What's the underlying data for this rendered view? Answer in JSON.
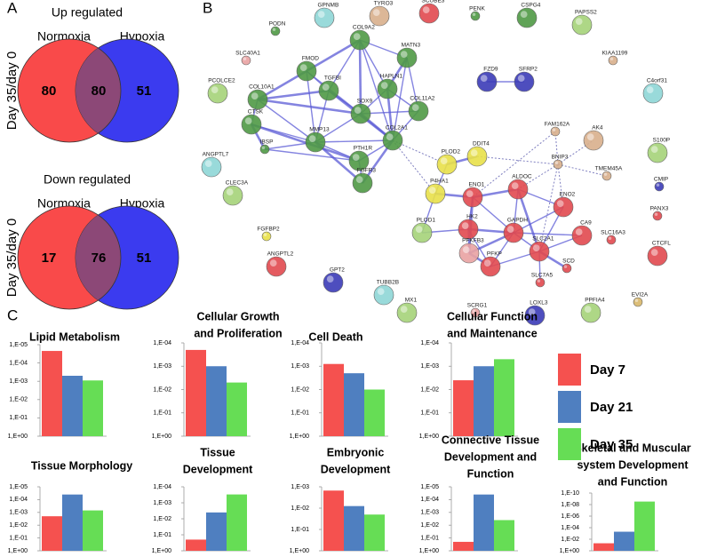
{
  "panel_labels": [
    "A",
    "B",
    "C"
  ],
  "venn": [
    {
      "title": "Up regulated",
      "ylabel": "Day 35/day 0",
      "sets": [
        "Normoxia",
        "Hypoxia"
      ],
      "values": [
        80,
        80,
        51
      ]
    },
    {
      "title": "Down regulated",
      "ylabel": "Day 35/day 0",
      "sets": [
        "Normoxia",
        "Hypoxia"
      ],
      "values": [
        17,
        76,
        51
      ]
    }
  ],
  "network": {
    "nodes": [
      "PODN",
      "GPNMB",
      "TYRO3",
      "SCUBE3",
      "PENK",
      "CSPG4",
      "PAPSS2",
      "KIAA1199",
      "SLC40A1",
      "FMOD",
      "COL9A2",
      "MATN3",
      "FZD9",
      "SFRP2",
      "C4orf31",
      "PCOLCE2",
      "COL10A1",
      "TGFBI",
      "HAPLN1",
      "SOX9",
      "COL11A2",
      "CTSK",
      "MMP13",
      "COL2A1",
      "IBSP",
      "FAM162A",
      "AK4",
      "S100P",
      "BNIP3",
      "TMEM45A",
      "ANGPTL7",
      "PTH1R",
      "FGFR3",
      "PLOD2",
      "DDIT4",
      "P4HA1",
      "ENO1",
      "ALDOC",
      "ENO2",
      "CMIP",
      "CLEC3A",
      "HK2",
      "GAPDH",
      "CA9",
      "SLC16A3",
      "PANX3",
      "PLOD1",
      "FGFBP2",
      "PFKFB3",
      "SLC2A1",
      "PFKP",
      "SCD",
      "SLC7A5",
      "CTCFL",
      "ANGPTL2",
      "GPT2",
      "TUBB2B",
      "MX1",
      "SCRG1",
      "LOXL3",
      "PPFIA4",
      "EVI2A"
    ]
  },
  "legend": [
    {
      "name": "Day 7",
      "color": "#f5514f"
    },
    {
      "name": "Day 21",
      "color": "#4f7fc0"
    },
    {
      "name": "Day 35",
      "color": "#66dd55"
    }
  ],
  "chart_data": [
    {
      "type": "bar",
      "title": [
        "Lipid Metabolism"
      ],
      "log_scale": true,
      "ylim": [
        1,
        1e-05
      ],
      "yticks": [
        {
          "value": 1e-05,
          "label": "1,E-05"
        },
        {
          "value": 0.0001,
          "label": "1,E-04"
        },
        {
          "value": 0.001,
          "label": "1,E-03"
        },
        {
          "value": 0.01,
          "label": "1,E-02"
        },
        {
          "value": 0.1,
          "label": "1,E-01"
        },
        {
          "value": 1,
          "label": "1,E+00"
        }
      ],
      "values": [
        2.2e-05,
        0.0005,
        0.0009
      ]
    },
    {
      "type": "bar",
      "title": [
        "Cellular Growth",
        "and Proliferation"
      ],
      "log_scale": true,
      "ylim": [
        1,
        0.0001
      ],
      "yticks": [
        {
          "value": 0.0001,
          "label": "1,E-04"
        },
        {
          "value": 0.001,
          "label": "1,E-03"
        },
        {
          "value": 0.01,
          "label": "1,E-02"
        },
        {
          "value": 0.1,
          "label": "1,E-01"
        },
        {
          "value": 1,
          "label": "1,E+00"
        }
      ],
      "values": [
        0.0002,
        0.001,
        0.005
      ]
    },
    {
      "type": "bar",
      "title": [
        "Cell Death"
      ],
      "log_scale": true,
      "ylim": [
        1,
        0.0001
      ],
      "yticks": [
        {
          "value": 0.0001,
          "label": "1,E-04"
        },
        {
          "value": 0.001,
          "label": "1,E-03"
        },
        {
          "value": 0.01,
          "label": "1,E-02"
        },
        {
          "value": 0.1,
          "label": "1,E-01"
        },
        {
          "value": 1,
          "label": "1,E+00"
        }
      ],
      "values": [
        0.0008,
        0.002,
        0.01
      ]
    },
    {
      "type": "bar",
      "title": [
        "Cellular Function",
        "and Maintenance"
      ],
      "log_scale": true,
      "ylim": [
        1,
        0.0001
      ],
      "yticks": [
        {
          "value": 0.0001,
          "label": "1,E-04"
        },
        {
          "value": 0.001,
          "label": "1,E-03"
        },
        {
          "value": 0.01,
          "label": "1,E-02"
        },
        {
          "value": 0.1,
          "label": "1,E-01"
        },
        {
          "value": 1,
          "label": "1,E+00"
        }
      ],
      "values": [
        0.004,
        0.001,
        0.0005
      ]
    },
    {
      "type": "bar",
      "title": [
        "Tissue Morphology"
      ],
      "log_scale": true,
      "ylim": [
        1,
        1e-05
      ],
      "yticks": [
        {
          "value": 1e-05,
          "label": "1,E-05"
        },
        {
          "value": 0.0001,
          "label": "1,E-04"
        },
        {
          "value": 0.001,
          "label": "1,E-03"
        },
        {
          "value": 0.01,
          "label": "1,E-02"
        },
        {
          "value": 0.1,
          "label": "1,E-01"
        },
        {
          "value": 1,
          "label": "1,E+00"
        }
      ],
      "values": [
        0.002,
        4e-05,
        0.0007
      ]
    },
    {
      "type": "bar",
      "title": [
        "Tissue",
        "Development"
      ],
      "log_scale": true,
      "ylim": [
        1,
        0.0001
      ],
      "yticks": [
        {
          "value": 0.0001,
          "label": "1,E-04"
        },
        {
          "value": 0.001,
          "label": "1,E-03"
        },
        {
          "value": 0.01,
          "label": "1,E-02"
        },
        {
          "value": 0.1,
          "label": "1,E-01"
        },
        {
          "value": 1,
          "label": "1,E+00"
        }
      ],
      "values": [
        0.2,
        0.004,
        0.0003
      ]
    },
    {
      "type": "bar",
      "title": [
        "Embryonic",
        "Development"
      ],
      "log_scale": true,
      "ylim": [
        1,
        0.001
      ],
      "yticks": [
        {
          "value": 0.001,
          "label": "1,E-03"
        },
        {
          "value": 0.01,
          "label": "1,E-02"
        },
        {
          "value": 0.1,
          "label": "1,E-01"
        },
        {
          "value": 1,
          "label": "1,E+00"
        }
      ],
      "values": [
        0.0015,
        0.008,
        0.02
      ]
    },
    {
      "type": "bar",
      "title": [
        "Connective Tissue",
        "Development and",
        "Function"
      ],
      "log_scale": true,
      "ylim": [
        1,
        1e-05
      ],
      "yticks": [
        {
          "value": 1e-05,
          "label": "1,E-05"
        },
        {
          "value": 0.0001,
          "label": "1,E-04"
        },
        {
          "value": 0.001,
          "label": "1,E-03"
        },
        {
          "value": 0.01,
          "label": "1,E-02"
        },
        {
          "value": 0.1,
          "label": "1,E-01"
        },
        {
          "value": 1,
          "label": "1,E+00"
        }
      ],
      "values": [
        0.2,
        4e-05,
        0.004
      ]
    },
    {
      "type": "bar",
      "title": [
        "Skeletal and Muscular",
        "system Development",
        "and Function"
      ],
      "log_scale": true,
      "ylim": [
        1,
        1e-10
      ],
      "yticks": [
        {
          "value": 1e-10,
          "label": "1,E-10"
        },
        {
          "value": 1e-08,
          "label": "1,E-08"
        },
        {
          "value": 1e-06,
          "label": "1,E-06"
        },
        {
          "value": 0.0001,
          "label": "1,E-04"
        },
        {
          "value": 0.01,
          "label": "1,E-02"
        },
        {
          "value": 1,
          "label": "1,E+00"
        }
      ],
      "values": [
        0.05,
        0.0005,
        3e-09
      ]
    }
  ]
}
